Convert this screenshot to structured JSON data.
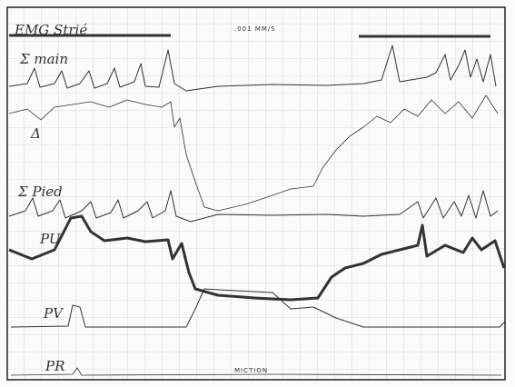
{
  "header": {
    "title": "EMG Strié",
    "speed": ".001 MM/S"
  },
  "traces": {
    "sigma_main": "Σ main",
    "delta": "Δ",
    "sigma_pied": "Σ Pied",
    "pu": "PU",
    "pv": "PV",
    "pr": "PR"
  },
  "annotation": "MICTION"
}
